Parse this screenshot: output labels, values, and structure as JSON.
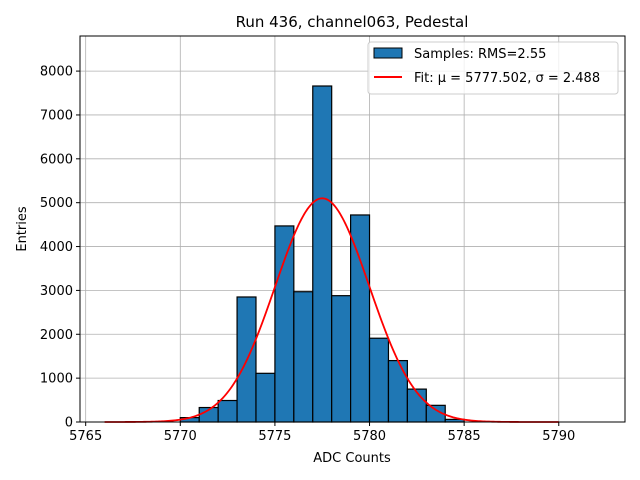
{
  "chart_data": {
    "type": "bar",
    "title": "Run 436, channel063, Pedestal",
    "xlabel": "ADC Counts",
    "ylabel": "Entries",
    "xlim": [
      5764.7,
      5793.5
    ],
    "ylim": [
      0,
      8800
    ],
    "x_ticks": [
      5765,
      5770,
      5775,
      5780,
      5785,
      5790
    ],
    "y_ticks": [
      0,
      1000,
      2000,
      3000,
      4000,
      5000,
      6000,
      7000,
      8000
    ],
    "grid": true,
    "legend_position": "top-right",
    "bin_width": 1,
    "bins": [
      {
        "x_left": 5770,
        "value": 100
      },
      {
        "x_left": 5771,
        "value": 330
      },
      {
        "x_left": 5772,
        "value": 490
      },
      {
        "x_left": 5773,
        "value": 2850
      },
      {
        "x_left": 5774,
        "value": 1110
      },
      {
        "x_left": 5775,
        "value": 4470
      },
      {
        "x_left": 5776,
        "value": 2970
      },
      {
        "x_left": 5777,
        "value": 7660
      },
      {
        "x_left": 5778,
        "value": 2880
      },
      {
        "x_left": 5779,
        "value": 4720
      },
      {
        "x_left": 5780,
        "value": 1910
      },
      {
        "x_left": 5781,
        "value": 1400
      },
      {
        "x_left": 5782,
        "value": 750
      },
      {
        "x_left": 5783,
        "value": 380
      },
      {
        "x_left": 5784,
        "value": 60
      }
    ],
    "fit": {
      "mu": 5777.502,
      "sigma": 2.488,
      "amplitude": 5100,
      "x_range": [
        5766,
        5790
      ]
    },
    "series": [
      {
        "name": "Samples: RMS=2.55",
        "color": "#1f77b4"
      },
      {
        "name": "Fit: μ = 5777.502, σ = 2.488",
        "color": "#ff0000"
      }
    ]
  }
}
